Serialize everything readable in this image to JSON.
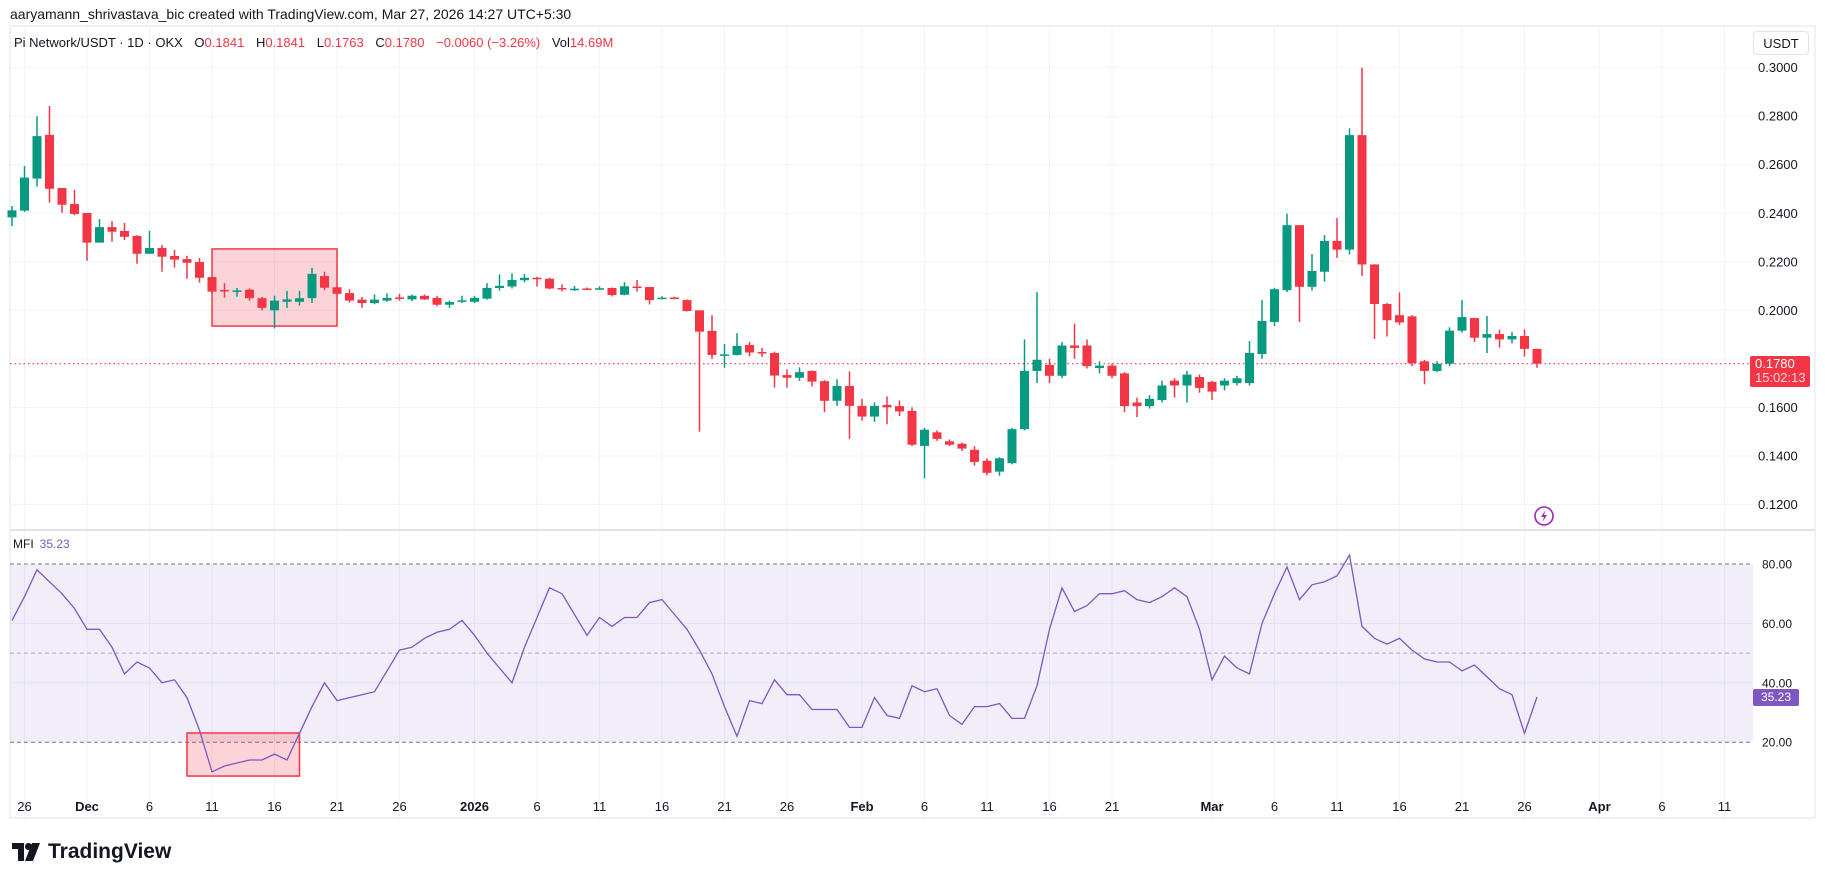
{
  "header": {
    "credit": "aaryamann_shrivastava_bic created with TradingView.com, Mar 27, 2026 14:27 UTC+5:30"
  },
  "legend": {
    "symbol": "Pi Network/USDT · 1D · OKX",
    "o_label": "O",
    "o_value": "0.1841",
    "h_label": "H",
    "h_value": "0.1841",
    "l_label": "L",
    "l_value": "0.1763",
    "c_label": "C",
    "c_value": "0.1780",
    "change": "−0.0060 (−3.26%)",
    "vol_label": "Vol",
    "vol_value": "14.69",
    "vol_unit": "M"
  },
  "price_axis": {
    "currency_button": "USDT",
    "last_price": "0.1780",
    "countdown": "15:02:13"
  },
  "indicator": {
    "name": "MFI",
    "value": "35.23"
  },
  "branding": {
    "logo_text": "TradingView"
  },
  "colors": {
    "up": "#089981",
    "down": "#f23645",
    "mfi_line": "#7e57c2",
    "mfi_band": "#7e57c2",
    "grid": "#f0f3fa",
    "annotation": "#f23645",
    "alert_icon": "#9c27b0"
  },
  "icons": {
    "alert": "lightning-bolt-icon",
    "logo": "tradingview-logo-icon"
  },
  "chart_data": [
    {
      "type": "candlestick",
      "title": "Pi Network/USDT · 1D · OKX",
      "ylabel": "USDT",
      "ylim": [
        0.11,
        0.305
      ],
      "grid": true,
      "y_ticks": [
        "0.3000",
        "0.2800",
        "0.2600",
        "0.2400",
        "0.2200",
        "0.2000",
        "0.1800",
        "0.1600",
        "0.1400",
        "0.1200"
      ],
      "x_ticks": [
        {
          "label": "26",
          "date": "2025-11-26"
        },
        {
          "label": "Dec",
          "date": "2025-12-01"
        },
        {
          "label": "6",
          "date": "2025-12-06"
        },
        {
          "label": "11",
          "date": "2025-12-11"
        },
        {
          "label": "16",
          "date": "2025-12-16"
        },
        {
          "label": "21",
          "date": "2025-12-21"
        },
        {
          "label": "26",
          "date": "2025-12-26"
        },
        {
          "label": "2026",
          "date": "2026-01-01"
        },
        {
          "label": "6",
          "date": "2026-01-06"
        },
        {
          "label": "11",
          "date": "2026-01-11"
        },
        {
          "label": "16",
          "date": "2026-01-16"
        },
        {
          "label": "21",
          "date": "2026-01-21"
        },
        {
          "label": "26",
          "date": "2026-01-26"
        },
        {
          "label": "Feb",
          "date": "2026-02-01"
        },
        {
          "label": "6",
          "date": "2026-02-06"
        },
        {
          "label": "11",
          "date": "2026-02-11"
        },
        {
          "label": "16",
          "date": "2026-02-16"
        },
        {
          "label": "21",
          "date": "2026-02-21"
        },
        {
          "label": "Mar",
          "date": "2026-03-01"
        },
        {
          "label": "6",
          "date": "2026-03-06"
        },
        {
          "label": "11",
          "date": "2026-03-11"
        },
        {
          "label": "16",
          "date": "2026-03-16"
        },
        {
          "label": "21",
          "date": "2026-03-21"
        },
        {
          "label": "26",
          "date": "2026-03-26"
        },
        {
          "label": "Apr",
          "date": "2026-04-01"
        },
        {
          "label": "6",
          "date": "2026-04-06"
        },
        {
          "label": "11",
          "date": "2026-04-11"
        }
      ],
      "last_price": 0.178,
      "dates": [
        "2025-11-25",
        "2025-11-26",
        "2025-11-27",
        "2025-11-28",
        "2025-11-29",
        "2025-11-30",
        "2025-12-01",
        "2025-12-02",
        "2025-12-03",
        "2025-12-04",
        "2025-12-05",
        "2025-12-06",
        "2025-12-07",
        "2025-12-08",
        "2025-12-09",
        "2025-12-10",
        "2025-12-11",
        "2025-12-12",
        "2025-12-13",
        "2025-12-14",
        "2025-12-15",
        "2025-12-16",
        "2025-12-17",
        "2025-12-18",
        "2025-12-19",
        "2025-12-20",
        "2025-12-21",
        "2025-12-22",
        "2025-12-23",
        "2025-12-24",
        "2025-12-25",
        "2025-12-26",
        "2025-12-27",
        "2025-12-28",
        "2025-12-29",
        "2025-12-30",
        "2025-12-31",
        "2026-01-01",
        "2026-01-02",
        "2026-01-03",
        "2026-01-04",
        "2026-01-05",
        "2026-01-06",
        "2026-01-07",
        "2026-01-08",
        "2026-01-09",
        "2026-01-10",
        "2026-01-11",
        "2026-01-12",
        "2026-01-13",
        "2026-01-14",
        "2026-01-15",
        "2026-01-16",
        "2026-01-17",
        "2026-01-18",
        "2026-01-19",
        "2026-01-20",
        "2026-01-21",
        "2026-01-22",
        "2026-01-23",
        "2026-01-24",
        "2026-01-25",
        "2026-01-26",
        "2026-01-27",
        "2026-01-28",
        "2026-01-29",
        "2026-01-30",
        "2026-01-31",
        "2026-02-01",
        "2026-02-02",
        "2026-02-03",
        "2026-02-04",
        "2026-02-05",
        "2026-02-06",
        "2026-02-07",
        "2026-02-08",
        "2026-02-09",
        "2026-02-10",
        "2026-02-11",
        "2026-02-12",
        "2026-02-13",
        "2026-02-14",
        "2026-02-15",
        "2026-02-16",
        "2026-02-17",
        "2026-02-18",
        "2026-02-19",
        "2026-02-20",
        "2026-02-21",
        "2026-02-22",
        "2026-02-23",
        "2026-02-24",
        "2026-02-25",
        "2026-02-26",
        "2026-02-27",
        "2026-02-28",
        "2026-03-01",
        "2026-03-02",
        "2026-03-03",
        "2026-03-04",
        "2026-03-05",
        "2026-03-06",
        "2026-03-07",
        "2026-03-08",
        "2026-03-09",
        "2026-03-10",
        "2026-03-11",
        "2026-03-12",
        "2026-03-13",
        "2026-03-14",
        "2026-03-15",
        "2026-03-16",
        "2026-03-17",
        "2026-03-18",
        "2026-03-19",
        "2026-03-20",
        "2026-03-21",
        "2026-03-22",
        "2026-03-23",
        "2026-03-24",
        "2026-03-25",
        "2026-03-26",
        "2026-03-27"
      ],
      "ohlc": [
        [
          0.2383,
          0.243,
          0.2347,
          0.2412
        ],
        [
          0.2411,
          0.2595,
          0.2405,
          0.2547
        ],
        [
          0.2543,
          0.28,
          0.251,
          0.2718
        ],
        [
          0.2723,
          0.2842,
          0.2444,
          0.2501
        ],
        [
          0.2504,
          0.2504,
          0.2402,
          0.2435
        ],
        [
          0.2438,
          0.2496,
          0.2392,
          0.2397
        ],
        [
          0.2401,
          0.2401,
          0.2204,
          0.2279
        ],
        [
          0.2279,
          0.2376,
          0.2279,
          0.2343
        ],
        [
          0.2343,
          0.2368,
          0.2283,
          0.2324
        ],
        [
          0.2327,
          0.236,
          0.229,
          0.2303
        ],
        [
          0.2306,
          0.231,
          0.2192,
          0.2233
        ],
        [
          0.2233,
          0.2327,
          0.2233,
          0.2257
        ],
        [
          0.2257,
          0.2269,
          0.2159,
          0.2221
        ],
        [
          0.2224,
          0.2249,
          0.2176,
          0.2209
        ],
        [
          0.2211,
          0.2225,
          0.213,
          0.2196
        ],
        [
          0.2199,
          0.2216,
          0.2114,
          0.2134
        ],
        [
          0.2137,
          0.2137,
          0.207,
          0.2077
        ],
        [
          0.2084,
          0.2112,
          0.2052,
          0.208
        ],
        [
          0.2078,
          0.2092,
          0.2056,
          0.2082
        ],
        [
          0.2085,
          0.209,
          0.204,
          0.205
        ],
        [
          0.205,
          0.2055,
          0.2,
          0.201
        ],
        [
          0.2,
          0.206,
          0.1925,
          0.204
        ],
        [
          0.2035,
          0.208,
          0.201,
          0.2045
        ],
        [
          0.2035,
          0.208,
          0.202,
          0.205
        ],
        [
          0.205,
          0.2175,
          0.203,
          0.215
        ],
        [
          0.2141,
          0.2159,
          0.2083,
          0.2093
        ],
        [
          0.2095,
          0.21,
          0.2065,
          0.2068
        ],
        [
          0.2071,
          0.2087,
          0.2032,
          0.204
        ],
        [
          0.2044,
          0.2055,
          0.201,
          0.203
        ],
        [
          0.203,
          0.2065,
          0.2025,
          0.2044
        ],
        [
          0.204,
          0.207,
          0.2035,
          0.2051
        ],
        [
          0.2053,
          0.2068,
          0.204,
          0.205
        ],
        [
          0.2045,
          0.2065,
          0.2038,
          0.206
        ],
        [
          0.206,
          0.2065,
          0.2043,
          0.2045
        ],
        [
          0.2051,
          0.206,
          0.2016,
          0.2023
        ],
        [
          0.2023,
          0.204,
          0.201,
          0.2034
        ],
        [
          0.2038,
          0.206,
          0.203,
          0.2041
        ],
        [
          0.2035,
          0.206,
          0.203,
          0.2051
        ],
        [
          0.2048,
          0.2112,
          0.2044,
          0.2092
        ],
        [
          0.2092,
          0.2148,
          0.2081,
          0.2101
        ],
        [
          0.2098,
          0.2152,
          0.209,
          0.2125
        ],
        [
          0.2124,
          0.215,
          0.2115,
          0.2134
        ],
        [
          0.2134,
          0.2138,
          0.2098,
          0.2131
        ],
        [
          0.213,
          0.2134,
          0.2086,
          0.209
        ],
        [
          0.2092,
          0.2107,
          0.2078,
          0.2086
        ],
        [
          0.2086,
          0.21,
          0.208,
          0.2089
        ],
        [
          0.209,
          0.2094,
          0.2085,
          0.2088
        ],
        [
          0.2088,
          0.2099,
          0.2085,
          0.2091
        ],
        [
          0.2092,
          0.2094,
          0.2057,
          0.2063
        ],
        [
          0.2064,
          0.2116,
          0.2062,
          0.2099
        ],
        [
          0.2098,
          0.2125,
          0.2077,
          0.2095
        ],
        [
          0.2096,
          0.2096,
          0.2024,
          0.2042
        ],
        [
          0.2048,
          0.2058,
          0.2045,
          0.2052
        ],
        [
          0.2053,
          0.2056,
          0.2045,
          0.2048
        ],
        [
          0.2042,
          0.2045,
          0.1995,
          0.1997
        ],
        [
          0.2,
          0.2,
          0.15,
          0.1912
        ],
        [
          0.1915,
          0.198,
          0.18,
          0.1816
        ],
        [
          0.1815,
          0.1861,
          0.1763,
          0.1818
        ],
        [
          0.1816,
          0.1906,
          0.1814,
          0.1853
        ],
        [
          0.1857,
          0.187,
          0.181,
          0.1826
        ],
        [
          0.1828,
          0.1845,
          0.1808,
          0.1824
        ],
        [
          0.1824,
          0.183,
          0.1681,
          0.1731
        ],
        [
          0.1733,
          0.1757,
          0.1681,
          0.1722
        ],
        [
          0.1722,
          0.1765,
          0.1709,
          0.1745
        ],
        [
          0.175,
          0.1752,
          0.1686,
          0.1706
        ],
        [
          0.1708,
          0.1712,
          0.158,
          0.1627
        ],
        [
          0.1627,
          0.1716,
          0.1606,
          0.1688
        ],
        [
          0.1688,
          0.1748,
          0.147,
          0.1606
        ],
        [
          0.1606,
          0.1635,
          0.1545,
          0.1562
        ],
        [
          0.1562,
          0.162,
          0.154,
          0.1606
        ],
        [
          0.161,
          0.1645,
          0.153,
          0.16
        ],
        [
          0.1605,
          0.1628,
          0.1564,
          0.1583
        ],
        [
          0.1585,
          0.16,
          0.144,
          0.1446
        ],
        [
          0.1441,
          0.1515,
          0.1307,
          0.1508
        ],
        [
          0.1497,
          0.1505,
          0.1462,
          0.147
        ],
        [
          0.146,
          0.1468,
          0.144,
          0.1446
        ],
        [
          0.145,
          0.1455,
          0.142,
          0.143
        ],
        [
          0.1425,
          0.144,
          0.136,
          0.1375
        ],
        [
          0.138,
          0.139,
          0.132,
          0.133
        ],
        [
          0.1335,
          0.1395,
          0.1318,
          0.139
        ],
        [
          0.137,
          0.1515,
          0.1365,
          0.151
        ],
        [
          0.151,
          0.188,
          0.1505,
          0.175
        ],
        [
          0.175,
          0.2075,
          0.17,
          0.1796
        ],
        [
          0.1775,
          0.18,
          0.17,
          0.173
        ],
        [
          0.173,
          0.187,
          0.172,
          0.1855
        ],
        [
          0.1855,
          0.1945,
          0.18,
          0.1845
        ],
        [
          0.1855,
          0.188,
          0.176,
          0.177
        ],
        [
          0.1762,
          0.179,
          0.174,
          0.1772
        ],
        [
          0.1772,
          0.178,
          0.172,
          0.173
        ],
        [
          0.174,
          0.1745,
          0.158,
          0.1605
        ],
        [
          0.162,
          0.164,
          0.156,
          0.1605
        ],
        [
          0.1605,
          0.165,
          0.1595,
          0.1635
        ],
        [
          0.163,
          0.171,
          0.162,
          0.169
        ],
        [
          0.171,
          0.172,
          0.164,
          0.169
        ],
        [
          0.169,
          0.175,
          0.162,
          0.1735
        ],
        [
          0.1725,
          0.1735,
          0.166,
          0.168
        ],
        [
          0.1705,
          0.171,
          0.163,
          0.1665
        ],
        [
          0.169,
          0.172,
          0.167,
          0.171
        ],
        [
          0.17,
          0.173,
          0.169,
          0.172
        ],
        [
          0.17,
          0.1873,
          0.169,
          0.1824
        ],
        [
          0.182,
          0.2042,
          0.18,
          0.1956
        ],
        [
          0.1952,
          0.2093,
          0.1935,
          0.2087
        ],
        [
          0.2083,
          0.2398,
          0.2075,
          0.2351
        ],
        [
          0.2351,
          0.2351,
          0.1952,
          0.2097
        ],
        [
          0.2097,
          0.2232,
          0.2081,
          0.2162
        ],
        [
          0.2159,
          0.231,
          0.2118,
          0.2286
        ],
        [
          0.2286,
          0.238,
          0.2216,
          0.225
        ],
        [
          0.225,
          0.275,
          0.223,
          0.2722
        ],
        [
          0.2722,
          0.3,
          0.2142,
          0.2189
        ],
        [
          0.2189,
          0.219,
          0.1882,
          0.2026
        ],
        [
          0.2026,
          0.203,
          0.1892,
          0.1959
        ],
        [
          0.198,
          0.2074,
          0.194,
          0.195
        ],
        [
          0.1975,
          0.198,
          0.177,
          0.1782
        ],
        [
          0.179,
          0.1795,
          0.1695,
          0.175
        ],
        [
          0.175,
          0.179,
          0.1745,
          0.178
        ],
        [
          0.178,
          0.193,
          0.177,
          0.1916
        ],
        [
          0.1916,
          0.2042,
          0.1908,
          0.1972
        ],
        [
          0.1968,
          0.1968,
          0.1869,
          0.1887
        ],
        [
          0.1887,
          0.1977,
          0.1824,
          0.1902
        ],
        [
          0.1902,
          0.1921,
          0.1846,
          0.188
        ],
        [
          0.188,
          0.1911,
          0.1864,
          0.1894
        ],
        [
          0.1894,
          0.1921,
          0.1809,
          0.1841
        ],
        [
          0.1841,
          0.1841,
          0.1763,
          0.178
        ]
      ],
      "annotations": [
        {
          "type": "rectangle",
          "from_date": "2025-12-11",
          "to_date": "2025-12-21",
          "price_top": 0.2253,
          "price_bottom": 0.1935
        }
      ]
    },
    {
      "type": "line",
      "title": "MFI",
      "ylim": [
        0,
        100
      ],
      "y_ticks": [
        "80.00",
        "60.00",
        "40.00",
        "20.00"
      ],
      "band": [
        20,
        80
      ],
      "midline": 50,
      "last_value": 35.23,
      "values": [
        61,
        69,
        78,
        74,
        70,
        65,
        58,
        58,
        52,
        43,
        47,
        45,
        40,
        41,
        35,
        24,
        10,
        12,
        13,
        14,
        14,
        16,
        14,
        23,
        32,
        40,
        34,
        35,
        36,
        37,
        44,
        51,
        52,
        55,
        57,
        58,
        61,
        56,
        50,
        45,
        40,
        52,
        62,
        72,
        70,
        63,
        56,
        62,
        59,
        62,
        62,
        67,
        68,
        63,
        58,
        51,
        43,
        32,
        22,
        34,
        33,
        41,
        36,
        36,
        31,
        31,
        31,
        25,
        25,
        35,
        29,
        28,
        39,
        37,
        38,
        29,
        26,
        32,
        32,
        33,
        28,
        28,
        39,
        58,
        72,
        64,
        66,
        70,
        70,
        71,
        68,
        67,
        69,
        72,
        69,
        58,
        41,
        49,
        45,
        43,
        60,
        70,
        79,
        68,
        73,
        74,
        76,
        83,
        59,
        55,
        53,
        55,
        51,
        48,
        47,
        47,
        44,
        46,
        42,
        38,
        36,
        23,
        35.23
      ],
      "annotations": [
        {
          "type": "rectangle",
          "from_date": "2025-12-09",
          "to_date": "2025-12-18",
          "value_top": 23.1,
          "value_bottom": 8.6
        }
      ]
    }
  ]
}
